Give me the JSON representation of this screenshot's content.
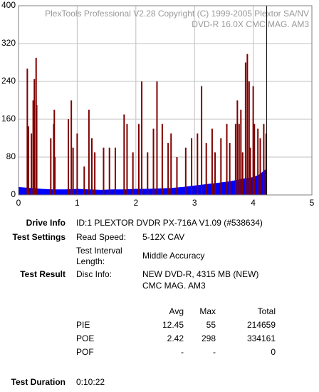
{
  "chart_data": {
    "type": "spike-area",
    "annotations": [
      "PlexTools Professional V2.28 Copyright (C) 1999-2005 Plextor SA/NV",
      "DVD-R    16.0X    CMC MAG. AM3"
    ],
    "xlim": [
      0,
      5
    ],
    "xticks": [
      0,
      1,
      2,
      3,
      4,
      5
    ],
    "ylim": [
      0,
      400
    ],
    "yticks": [
      0,
      80,
      160,
      240,
      320,
      400
    ],
    "grid": true,
    "series": [
      {
        "name": "PIE",
        "color": "#0000ff",
        "kind": "area",
        "x": [
          0,
          0.2,
          0.4,
          0.6,
          0.8,
          1.0,
          1.2,
          1.4,
          1.6,
          1.8,
          2.0,
          2.2,
          2.4,
          2.6,
          2.8,
          3.0,
          3.2,
          3.4,
          3.6,
          3.8,
          4.0,
          4.1,
          4.2,
          4.23
        ],
        "values": [
          16,
          14,
          12,
          11,
          11,
          12,
          11,
          10,
          11,
          11,
          12,
          12,
          13,
          14,
          16,
          19,
          22,
          25,
          28,
          33,
          37,
          42,
          52,
          55
        ]
      },
      {
        "name": "POE",
        "color": "#800000",
        "kind": "spikes",
        "x": [
          0.15,
          0.17,
          0.22,
          0.25,
          0.27,
          0.3,
          0.31,
          0.55,
          0.6,
          0.61,
          0.62,
          0.85,
          0.9,
          0.93,
          1.0,
          1.12,
          1.2,
          1.25,
          1.3,
          1.45,
          1.55,
          1.65,
          1.8,
          1.85,
          1.95,
          2.05,
          2.1,
          2.2,
          2.3,
          2.36,
          2.45,
          2.55,
          2.6,
          2.7,
          2.85,
          2.95,
          3.05,
          3.12,
          3.2,
          3.3,
          3.35,
          3.45,
          3.55,
          3.6,
          3.7,
          3.73,
          3.76,
          3.79,
          3.82,
          3.87,
          3.9,
          3.93,
          3.95,
          4.0,
          4.02,
          4.08,
          4.12,
          4.18,
          4.22
        ],
        "values": [
          267,
          145,
          130,
          200,
          245,
          290,
          190,
          120,
          150,
          180,
          80,
          160,
          200,
          100,
          130,
          60,
          180,
          120,
          90,
          100,
          100,
          100,
          170,
          150,
          90,
          150,
          240,
          90,
          140,
          240,
          150,
          110,
          130,
          80,
          100,
          120,
          130,
          230,
          110,
          140,
          90,
          120,
          150,
          110,
          150,
          200,
          150,
          180,
          90,
          280,
          298,
          240,
          100,
          230,
          150,
          140,
          120,
          150,
          130
        ]
      }
    ],
    "markers": [
      {
        "x": 4.23,
        "color": "#000000"
      }
    ]
  },
  "report": {
    "drive_info": {
      "label": "Drive Info",
      "value": "ID:1 PLEXTOR DVDR PX-716A V1.09 (#538634)"
    },
    "test_settings": {
      "label": "Test Settings",
      "rows": [
        [
          "Read Speed:",
          "5-12X CAV"
        ],
        [
          "Test Interval",
          "Length:",
          "Middle Accuracy"
        ]
      ]
    },
    "test_result": {
      "label": "Test Result",
      "key": "Disc Info:",
      "lines": [
        "NEW DVD-R, 4315 MB (NEW)",
        "CMC MAG. AM3"
      ]
    },
    "table": {
      "header": [
        "Avg",
        "Max",
        "Total"
      ],
      "rows": [
        [
          "PIE",
          "12.45",
          "55",
          "214659"
        ],
        [
          "POE",
          "2.42",
          "298",
          "334161"
        ],
        [
          "POF",
          "-",
          "-",
          "0"
        ]
      ]
    },
    "test_duration": {
      "label": "Test Duration",
      "value": "0:10:22"
    }
  }
}
